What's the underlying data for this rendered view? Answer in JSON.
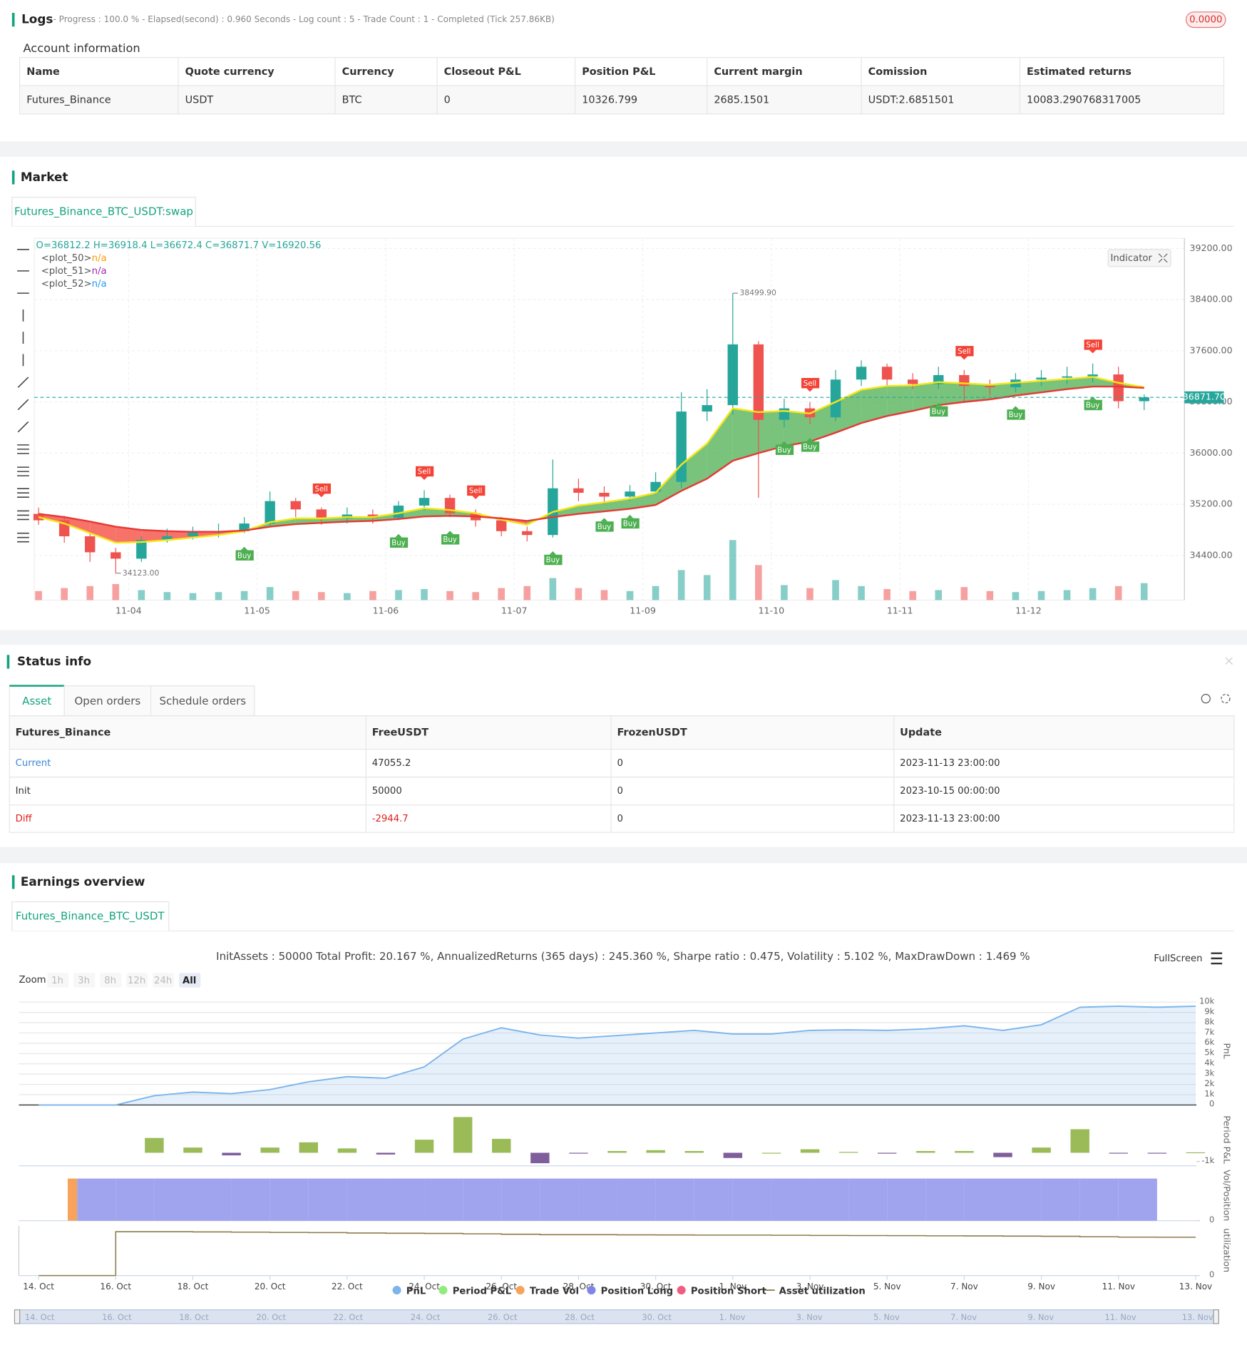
{
  "logs": {
    "title": "Logs",
    "summary": "- Progress : 100.0 % - Elapsed(second) : 0.960  Seconds - Log count : 5 - Trade Count : 1 - Completed (Tick 257.86KB)",
    "badge": "0.0000"
  },
  "account": {
    "title": "Account information",
    "columns": [
      "Name",
      "Quote currency",
      "Currency",
      "Closeout P&L",
      "Position P&L",
      "Current margin",
      "Comission",
      "Estimated returns"
    ],
    "rows": [
      [
        "Futures_Binance",
        "USDT",
        "BTC",
        "0",
        "10326.799",
        "2685.1501",
        "USDT:2.6851501",
        "10083.290768317005"
      ]
    ]
  },
  "market": {
    "title": "Market",
    "tab": "Futures_Binance_BTC_USDT:swap",
    "indicator": "Indicator"
  },
  "status": {
    "title": "Status info",
    "tabs": [
      "Asset",
      "Open orders",
      "Schedule orders"
    ],
    "columns": [
      "Futures_Binance",
      "FreeUSDT",
      "FrozenUSDT",
      "Update"
    ],
    "rows": [
      [
        "Current",
        "47055.2",
        "0",
        "2023-11-13 23:00:00"
      ],
      [
        "Init",
        "50000",
        "0",
        "2023-10-15 00:00:00"
      ],
      [
        "Diff",
        "-2944.7",
        "0",
        "2023-11-13 23:00:00"
      ]
    ]
  },
  "earnings": {
    "title": "Earnings overview",
    "tab": "Futures_Binance_BTC_USDT",
    "summary": "InitAssets : 50000 Total Profit: 20.167 %, AnnualizedReturns (365 days) : 245.360 %, Sharpe ratio : 0.475, Volatility : 5.102 %, MaxDrawDown : 1.469 %",
    "fullscreen": "FullScreen",
    "zoom": {
      "label": "Zoom",
      "buttons": [
        "1h",
        "3h",
        "8h",
        "12h",
        "24h",
        "All"
      ]
    }
  },
  "chart_data": [
    {
      "type": "candlestick",
      "ohlc_text": "O=36812.2 H=36918.4 L=36672.4 C=36871.7 V=16920.56",
      "up_color": "#26a69a",
      "down_color": "#ef5350",
      "fill_up": "#4caf50",
      "fill_down": "#f44336",
      "grid": true,
      "x": [
        0.3,
        0.5,
        0.7,
        0.9,
        1.1,
        1.3,
        1.5,
        1.7,
        1.9,
        2.1,
        2.3,
        2.5,
        2.7,
        2.9,
        3.1,
        3.3,
        3.5,
        3.7,
        3.9,
        4.1,
        4.3,
        4.5,
        4.7,
        4.9,
        5.1,
        5.3,
        5.5,
        5.7,
        5.9,
        6.1,
        6.3,
        6.5,
        6.7,
        6.9,
        7.1,
        7.3,
        7.5,
        7.7,
        7.9,
        8.1,
        8.3,
        8.5,
        8.7,
        8.9
      ],
      "open": [
        35050,
        34950,
        34700,
        34450,
        34350,
        34640,
        34700,
        34760,
        34780,
        34900,
        35250,
        35120,
        34980,
        35040,
        34990,
        35180,
        35300,
        35060,
        34950,
        34780,
        34720,
        35450,
        35380,
        35320,
        35400,
        35550,
        36650,
        36750,
        37700,
        36520,
        36700,
        36560,
        37150,
        37350,
        37150,
        37080,
        37220,
        37050,
        37030,
        37150,
        37180,
        37200,
        37230,
        36812.2
      ],
      "high": [
        35150,
        35020,
        34780,
        34520,
        34700,
        34820,
        34850,
        34900,
        35000,
        35400,
        35300,
        35150,
        35150,
        35120,
        35250,
        35420,
        35350,
        35120,
        35000,
        34850,
        35900,
        35600,
        35480,
        35500,
        35700,
        36950,
        37000,
        38499.9,
        37750,
        36850,
        36800,
        37300,
        37450,
        37400,
        37250,
        37350,
        37300,
        37150,
        37250,
        37300,
        37350,
        37400,
        37350,
        36918.4
      ],
      "low": [
        34880,
        34600,
        34300,
        34123,
        34300,
        34600,
        34650,
        34680,
        34750,
        34850,
        35000,
        34880,
        34900,
        34900,
        34950,
        35100,
        35000,
        34850,
        34700,
        34620,
        34680,
        35250,
        35200,
        35250,
        35350,
        35450,
        36500,
        36600,
        35300,
        36400,
        36450,
        36500,
        37050,
        37050,
        37000,
        37000,
        36800,
        36900,
        36950,
        37050,
        37080,
        37100,
        36700,
        36672.4
      ],
      "close": [
        34950,
        34700,
        34450,
        34350,
        34640,
        34700,
        34760,
        34780,
        34900,
        35250,
        35120,
        34980,
        35040,
        34990,
        35180,
        35300,
        35060,
        34950,
        34780,
        34720,
        35450,
        35380,
        35320,
        35400,
        35550,
        36650,
        36750,
        37700,
        36520,
        36700,
        36560,
        37150,
        37350,
        37150,
        37080,
        37220,
        37050,
        37030,
        37150,
        37180,
        37200,
        37230,
        36812.2,
        36871.7
      ],
      "volume": [
        9000,
        12000,
        14000,
        16000,
        10000,
        8000,
        7000,
        8000,
        9000,
        13000,
        9000,
        8000,
        7000,
        9000,
        10000,
        11000,
        9000,
        8000,
        12000,
        14000,
        22000,
        12000,
        10000,
        9000,
        14000,
        30000,
        25000,
        60000,
        35000,
        15000,
        12000,
        20000,
        14000,
        11000,
        9000,
        10000,
        13000,
        9000,
        8000,
        9000,
        10000,
        12000,
        14000,
        16920.56
      ],
      "series": [
        {
          "name": "<plot_50>",
          "status": "n/a",
          "status_color": "#ff9800",
          "color": "#f5e616",
          "values": [
            35000,
            34900,
            34750,
            34600,
            34610,
            34640,
            34680,
            34720,
            34780,
            34920,
            34980,
            34980,
            35000,
            35000,
            35060,
            35140,
            35110,
            35060,
            34960,
            34880,
            35080,
            35180,
            35230,
            35290,
            35380,
            35820,
            36150,
            36700,
            36640,
            36660,
            36620,
            36800,
            36990,
            37050,
            37060,
            37110,
            37090,
            37070,
            37100,
            37130,
            37160,
            37190,
            37100,
            37030
          ]
        },
        {
          "name": "<plot_51>",
          "status": "n/a",
          "status_color": "#9c27b0",
          "color": "#e53935",
          "values": [
            35050,
            35000,
            34930,
            34850,
            34800,
            34780,
            34770,
            34770,
            34790,
            34850,
            34890,
            34910,
            34930,
            34940,
            34970,
            35010,
            35020,
            35010,
            34980,
            34940,
            35000,
            35050,
            35090,
            35130,
            35190,
            35410,
            35600,
            35880,
            36000,
            36110,
            36180,
            36320,
            36470,
            36580,
            36660,
            36750,
            36800,
            36840,
            36900,
            36950,
            37000,
            37040,
            37040,
            37020
          ]
        },
        {
          "name": "<plot_52>",
          "status": "n/a",
          "status_color": "#2196f3"
        }
      ],
      "signals": [
        {
          "label": "Buy",
          "x": 1.9
        },
        {
          "label": "Sell",
          "x": 2.5
        },
        {
          "label": "Buy",
          "x": 3.1
        },
        {
          "label": "Sell",
          "x": 3.3
        },
        {
          "label": "Buy",
          "x": 3.5
        },
        {
          "label": "Sell",
          "x": 3.7
        },
        {
          "label": "Buy",
          "x": 4.3
        },
        {
          "label": "Buy",
          "x": 4.7
        },
        {
          "label": "Buy",
          "x": 4.9
        },
        {
          "label": "Buy",
          "x": 6.1
        },
        {
          "label": "Buy",
          "x": 6.3
        },
        {
          "label": "Sell",
          "x": 6.3
        },
        {
          "label": "Buy",
          "x": 7.3
        },
        {
          "label": "Sell",
          "x": 7.5
        },
        {
          "label": "Buy",
          "x": 7.9
        },
        {
          "label": "Buy",
          "x": 8.5
        },
        {
          "label": "Sell",
          "x": 8.5
        }
      ],
      "annotations": [
        {
          "value": 38499.9,
          "label": "38499.90",
          "x": 5.7
        },
        {
          "value": 34123,
          "label": "34123.00",
          "x": 0.9
        }
      ],
      "last_price": {
        "value": 36871.7,
        "label": "36871.70"
      },
      "xlim": [
        0.2667,
        9.2133
      ],
      "ylim": [
        33703,
        39358
      ],
      "xticks": [
        {
          "value": 1,
          "label": "11-04"
        },
        {
          "value": 2,
          "label": "11-05"
        },
        {
          "value": 3,
          "label": "11-06"
        },
        {
          "value": 4,
          "label": "11-07"
        },
        {
          "value": 5,
          "label": "11-09"
        },
        {
          "value": 6,
          "label": "11-10"
        },
        {
          "value": 7,
          "label": "11-11"
        },
        {
          "value": 8,
          "label": "11-12"
        }
      ],
      "yticks": [
        {
          "value": 34400,
          "label": "34400.00"
        },
        {
          "value": 35200,
          "label": "35200.00"
        },
        {
          "value": 36000,
          "label": "36000.00"
        },
        {
          "value": 36800,
          "label": "36800.00"
        },
        {
          "value": 37600,
          "label": "37600.00"
        },
        {
          "value": 38400,
          "label": "38400.00"
        },
        {
          "value": 39200,
          "label": "39200.00"
        }
      ]
    },
    {
      "type": "panels",
      "x": [
        0,
        1,
        2,
        3,
        4,
        5,
        6,
        7,
        8,
        9,
        10,
        11,
        12,
        13,
        14,
        15,
        16,
        17,
        18,
        19,
        20,
        21,
        22,
        23,
        24,
        25,
        26,
        27,
        28,
        29,
        30
      ],
      "xlim": [
        -0.511,
        30.02
      ],
      "xticks": [
        {
          "value": 0,
          "label": "14. Oct"
        },
        {
          "value": 2,
          "label": "16. Oct"
        },
        {
          "value": 4,
          "label": "18. Oct"
        },
        {
          "value": 6,
          "label": "20. Oct"
        },
        {
          "value": 8,
          "label": "22. Oct"
        },
        {
          "value": 10,
          "label": "24. Oct"
        },
        {
          "value": 12,
          "label": "26. Oct"
        },
        {
          "value": 14,
          "label": "28. Oct"
        },
        {
          "value": 16,
          "label": "30. Oct"
        },
        {
          "value": 18,
          "label": "1. Nov"
        },
        {
          "value": 20,
          "label": "3. Nov"
        },
        {
          "value": 22,
          "label": "5. Nov"
        },
        {
          "value": 24,
          "label": "7. Nov"
        },
        {
          "value": 26,
          "label": "9. Nov"
        },
        {
          "value": 28,
          "label": "11. Nov"
        },
        {
          "value": 30,
          "label": "13. Nov"
        }
      ],
      "panels": [
        {
          "label": "PnL",
          "ylim": [
            0,
            10500
          ],
          "yticks": [
            0,
            {
              "value": 1000,
              "label": "1k"
            },
            {
              "value": 2000,
              "label": "2k"
            },
            {
              "value": 3000,
              "label": "3k"
            },
            {
              "value": 4000,
              "label": "4k"
            },
            {
              "value": 5000,
              "label": "5k"
            },
            {
              "value": 6000,
              "label": "6k"
            },
            {
              "value": 7000,
              "label": "7k"
            },
            {
              "value": 8000,
              "label": "8k"
            },
            {
              "value": 9000,
              "label": "9k"
            },
            {
              "value": 10000,
              "label": "10k"
            }
          ]
        },
        {
          "label": "Period P&L",
          "ylim": [
            -1500,
            4500
          ],
          "yticks": [
            {
              "value": -1000,
              "label": "-1k"
            }
          ]
        },
        {
          "label": "Vol/Position",
          "ylim": [
            0,
            120
          ],
          "yticks": [
            0
          ]
        },
        {
          "label": "utilization",
          "ylim": [
            0,
            60
          ],
          "yticks": [
            0
          ]
        }
      ],
      "series": [
        {
          "name": "PnL",
          "color": "#7cb5ec",
          "panel": 0,
          "values": [
            0,
            0,
            0,
            900,
            1250,
            1100,
            1500,
            2250,
            2750,
            2600,
            3700,
            6400,
            7500,
            6800,
            6500,
            6750,
            7000,
            7250,
            6900,
            6900,
            7250,
            7300,
            7250,
            7400,
            7700,
            7250,
            7800,
            9500,
            9600,
            9500,
            9600
          ]
        },
        {
          "name": "Period P&L",
          "color": "#90ed7d",
          "panel": 1,
          "positive_color": "#9bbb59",
          "negative_color": "#7f5f9b",
          "values": [
            null,
            null,
            null,
            1700,
            600,
            -300,
            600,
            1200,
            500,
            -200,
            1500,
            4100,
            1600,
            -1200,
            -50,
            200,
            300,
            200,
            -600,
            0,
            400,
            100,
            -100,
            200,
            200,
            -500,
            600,
            2700,
            -50,
            -50,
            50
          ]
        },
        {
          "name": "Trade Vol",
          "color": "#f7a35c",
          "panel": 2,
          "values": [
            null,
            100,
            null,
            null,
            null,
            null,
            null,
            null,
            null,
            null,
            null,
            null,
            null,
            null,
            null,
            null,
            null,
            null,
            null,
            null,
            null,
            null,
            null,
            null,
            null,
            null,
            null,
            null,
            null,
            null,
            null
          ]
        },
        {
          "name": "Position Long",
          "color": "#8085e9",
          "panel": 2,
          "values": [
            null,
            100,
            100,
            100,
            100,
            100,
            100,
            100,
            100,
            100,
            100,
            100,
            100,
            100,
            100,
            100,
            100,
            100,
            100,
            100,
            100,
            100,
            100,
            100,
            100,
            100,
            100,
            100,
            100,
            100,
            null
          ]
        },
        {
          "name": "Position Short",
          "color": "#f15c80"
        },
        {
          "name": "Asset utilization",
          "color": "#8d7a4a",
          "panel": 3,
          "values": [
            0,
            0,
            52,
            52,
            51.8,
            51.5,
            51.2,
            51,
            50.5,
            50.2,
            50,
            49.5,
            49,
            48.5,
            48.5,
            48.3,
            48.2,
            48,
            48,
            47.8,
            47.6,
            47.5,
            47.4,
            47.2,
            47,
            46.8,
            46.6,
            46,
            45.6,
            45.5,
            45.5
          ]
        }
      ]
    }
  ]
}
